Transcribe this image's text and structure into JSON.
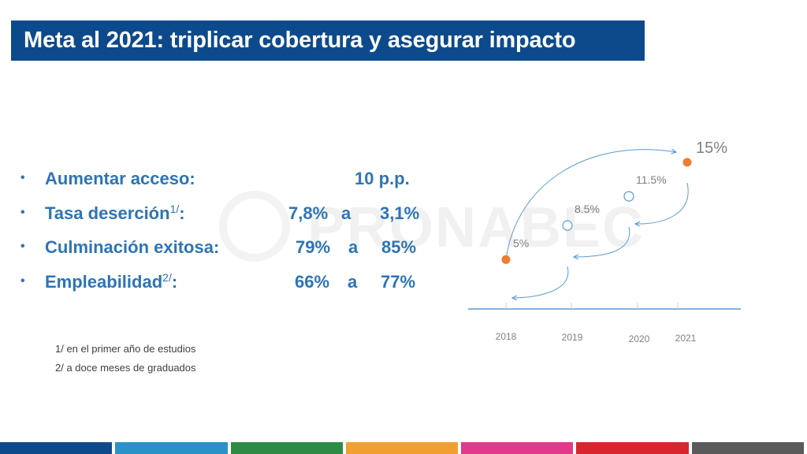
{
  "title": "Meta al 2021: triplicar cobertura y asegurar impacto",
  "watermark_text": "PRONABEC",
  "goals": [
    {
      "label": "Aumentar acceso:",
      "sup": "",
      "from": "",
      "connector": "",
      "to": "10 p.p."
    },
    {
      "label": "Tasa deserción",
      "sup": "1/",
      "suffix": ":",
      "from": "7,8%",
      "connector": "a",
      "to": "3,1%"
    },
    {
      "label": "Culminación exitosa:",
      "sup": "",
      "from": "79%",
      "connector": "a",
      "to": "85%"
    },
    {
      "label": "Empleabilidad",
      "sup": "2/",
      "suffix": ":",
      "from": "66%",
      "connector": "a",
      "to": "77%"
    }
  ],
  "footnotes": [
    "1/ en el primer año de estudios",
    "2/ a doce meses de graduados"
  ],
  "timeline": {
    "years": [
      "2018",
      "2019",
      "2020",
      "2021"
    ],
    "points": [
      {
        "year": "2018",
        "label": "5%",
        "value": 5,
        "style": "filled"
      },
      {
        "year": "2019",
        "label": "8.5%",
        "value": 8.5,
        "style": "hollow"
      },
      {
        "year": "2020",
        "label": "11.5%",
        "value": 11.5,
        "style": "hollow"
      },
      {
        "year": "2021",
        "label": "15%",
        "value": 15,
        "style": "filled"
      }
    ]
  },
  "colors": {
    "title_bg": "#0c4a8c",
    "bullet_text": "#2e74b5",
    "point_filled": "#ed7d31",
    "point_hollow": "#5b9bd5",
    "axis": "#5b9bd5",
    "stripe": [
      "#0c4a8c",
      "#2a92c6",
      "#2e8b46",
      "#f0a030",
      "#e03b8a",
      "#d9262e",
      "#5a5a5a"
    ]
  }
}
